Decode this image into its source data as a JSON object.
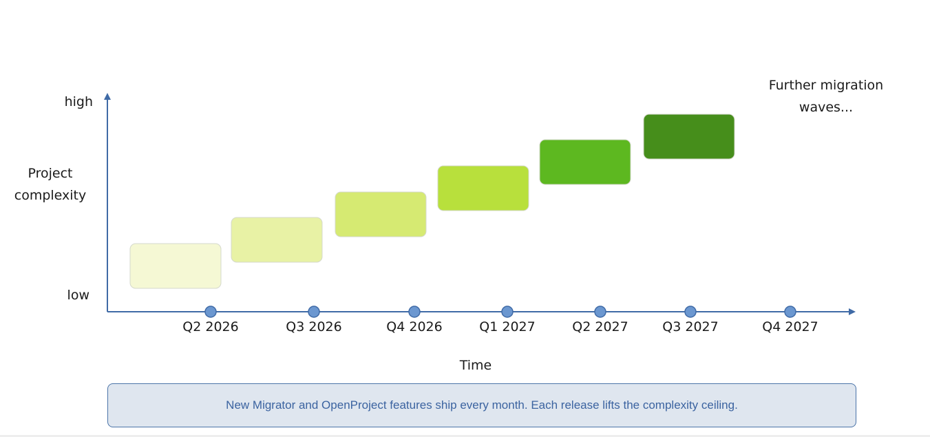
{
  "yaxis": {
    "label_line1": "Project",
    "label_line2": "complexity",
    "high_label": "high",
    "low_label": "low"
  },
  "xaxis": {
    "label": "Time",
    "ticks": [
      "Q2 2026",
      "Q3 2026",
      "Q4 2026",
      "Q1 2027",
      "Q2 2027",
      "Q3 2027",
      "Q4 2027"
    ]
  },
  "note": {
    "line1": "Further migration",
    "line2": "waves..."
  },
  "steps": {
    "count": 6,
    "colors": [
      "#f5f8d4",
      "#e8f2a5",
      "#d6ea72",
      "#b8e03c",
      "#5db820",
      "#468e1b"
    ]
  },
  "colors": {
    "axis": "#3f6aa6",
    "marker_fill": "#6b97d0",
    "marker_stroke": "#3f6aa6"
  },
  "footer": {
    "text": "New Migrator and OpenProject features ship every month. Each release lifts the complexity ceiling."
  }
}
